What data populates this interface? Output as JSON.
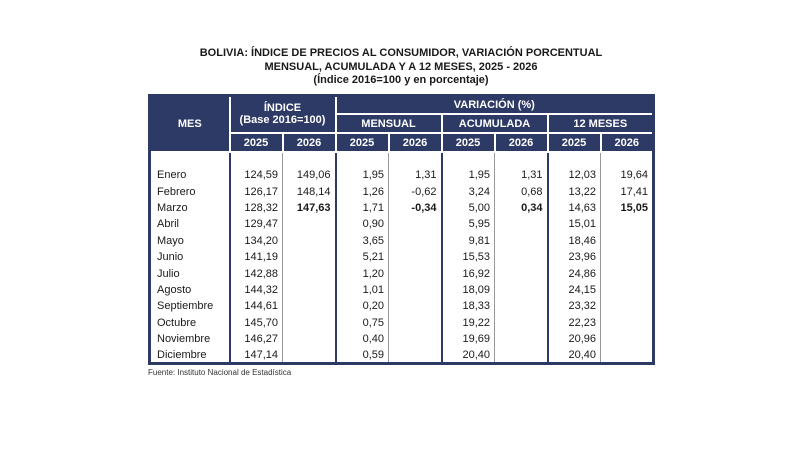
{
  "title": {
    "line1": "BOLIVIA: ÍNDICE DE PRECIOS AL CONSUMIDOR, VARIACIÓN PORCENTUAL",
    "line2": "MENSUAL, ACUMULADA Y A 12 MESES, 2025 - 2026",
    "line3": "(Índice 2016=100 y en porcentaje)"
  },
  "table": {
    "header": {
      "mes": "MES",
      "indice_title": "ÍNDICE",
      "indice_subtitle": "(Base 2016=100)",
      "variacion": "VARIACIÓN (%)",
      "group_mensual": "MENSUAL",
      "group_acumulada": "ACUMULADA",
      "group_12meses": "12 MESES",
      "year_2025": "2025",
      "year_2026": "2026"
    },
    "rows": [
      {
        "mes": "Enero",
        "indice_2025": "124,59",
        "indice_2026": "149,06",
        "mensual_2025": "1,95",
        "mensual_2026": "1,31",
        "acumulada_2025": "1,95",
        "acumulada_2026": "1,31",
        "meses12_2025": "12,03",
        "meses12_2026": "19,64",
        "bold_2026": false
      },
      {
        "mes": "Febrero",
        "indice_2025": "126,17",
        "indice_2026": "148,14",
        "mensual_2025": "1,26",
        "mensual_2026": "-0,62",
        "acumulada_2025": "3,24",
        "acumulada_2026": "0,68",
        "meses12_2025": "13,22",
        "meses12_2026": "17,41",
        "bold_2026": false
      },
      {
        "mes": "Marzo",
        "indice_2025": "128,32",
        "indice_2026": "147,63",
        "mensual_2025": "1,71",
        "mensual_2026": "-0,34",
        "acumulada_2025": "5,00",
        "acumulada_2026": "0,34",
        "meses12_2025": "14,63",
        "meses12_2026": "15,05",
        "bold_2026": true
      },
      {
        "mes": "Abril",
        "indice_2025": "129,47",
        "indice_2026": "",
        "mensual_2025": "0,90",
        "mensual_2026": "",
        "acumulada_2025": "5,95",
        "acumulada_2026": "",
        "meses12_2025": "15,01",
        "meses12_2026": "",
        "bold_2026": false
      },
      {
        "mes": "Mayo",
        "indice_2025": "134,20",
        "indice_2026": "",
        "mensual_2025": "3,65",
        "mensual_2026": "",
        "acumulada_2025": "9,81",
        "acumulada_2026": "",
        "meses12_2025": "18,46",
        "meses12_2026": "",
        "bold_2026": false
      },
      {
        "mes": "Junio",
        "indice_2025": "141,19",
        "indice_2026": "",
        "mensual_2025": "5,21",
        "mensual_2026": "",
        "acumulada_2025": "15,53",
        "acumulada_2026": "",
        "meses12_2025": "23,96",
        "meses12_2026": "",
        "bold_2026": false
      },
      {
        "mes": "Julio",
        "indice_2025": "142,88",
        "indice_2026": "",
        "mensual_2025": "1,20",
        "mensual_2026": "",
        "acumulada_2025": "16,92",
        "acumulada_2026": "",
        "meses12_2025": "24,86",
        "meses12_2026": "",
        "bold_2026": false
      },
      {
        "mes": "Agosto",
        "indice_2025": "144,32",
        "indice_2026": "",
        "mensual_2025": "1,01",
        "mensual_2026": "",
        "acumulada_2025": "18,09",
        "acumulada_2026": "",
        "meses12_2025": "24,15",
        "meses12_2026": "",
        "bold_2026": false
      },
      {
        "mes": "Septiembre",
        "indice_2025": "144,61",
        "indice_2026": "",
        "mensual_2025": "0,20",
        "mensual_2026": "",
        "acumulada_2025": "18,33",
        "acumulada_2026": "",
        "meses12_2025": "23,32",
        "meses12_2026": "",
        "bold_2026": false
      },
      {
        "mes": "Octubre",
        "indice_2025": "145,70",
        "indice_2026": "",
        "mensual_2025": "0,75",
        "mensual_2026": "",
        "acumulada_2025": "19,22",
        "acumulada_2026": "",
        "meses12_2025": "22,23",
        "meses12_2026": "",
        "bold_2026": false
      },
      {
        "mes": "Noviembre",
        "indice_2025": "146,27",
        "indice_2026": "",
        "mensual_2025": "0,40",
        "mensual_2026": "",
        "acumulada_2025": "19,69",
        "acumulada_2026": "",
        "meses12_2025": "20,96",
        "meses12_2026": "",
        "bold_2026": false
      },
      {
        "mes": "Diciembre",
        "indice_2025": "147,14",
        "indice_2026": "",
        "mensual_2025": "0,59",
        "mensual_2026": "",
        "acumulada_2025": "20,40",
        "acumulada_2026": "",
        "meses12_2025": "20,40",
        "meses12_2026": "",
        "bold_2026": false
      }
    ]
  },
  "footer": {
    "source": "Fuente: Instituto Nacional de Estadística"
  },
  "colors": {
    "header_bg": "#2e3a66",
    "header_text": "#ffffff",
    "group_border": "#2e3a66",
    "thin_border": "#999999"
  }
}
